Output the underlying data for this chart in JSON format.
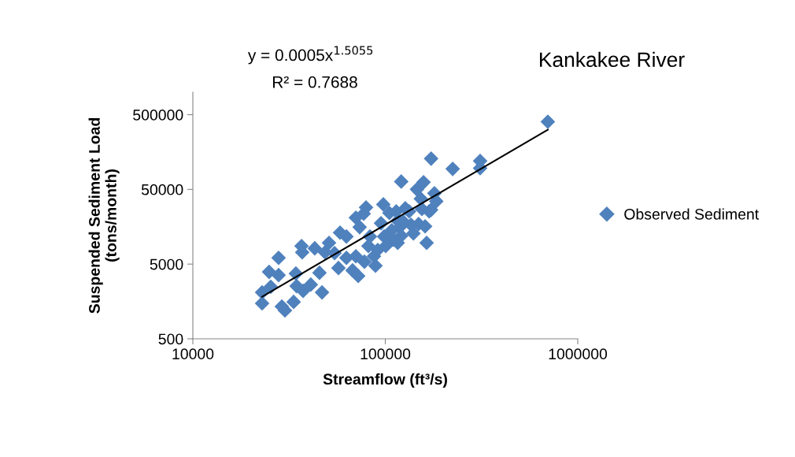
{
  "chart_data": {
    "type": "scatter",
    "title": "Kankakee River",
    "xlabel": "Streamflow (ft³/s)",
    "ylabel": "Suspended Sediment Load\n(tons/month)",
    "annotations": [
      "y = 0.0005x$^{1.5055}$",
      "R² = 0.7688"
    ],
    "log": "xy",
    "xlim": [
      10000,
      1000000
    ],
    "xticks": [
      10000,
      100000,
      1000000
    ],
    "ylim": [
      500,
      1000000
    ],
    "yticks": [
      500,
      5000,
      50000,
      500000
    ],
    "grid": false,
    "legend": "right",
    "marker": "diamond",
    "series": [
      {
        "name": "Observed Sediment",
        "color": "#4f81bd",
        "x": [
          22900,
          22900,
          25400,
          24900,
          27900,
          27900,
          29000,
          30100,
          33400,
          34300,
          34600,
          36700,
          37000,
          37400,
          41000,
          43000,
          45500,
          46900,
          48600,
          51000,
          54500,
          57100,
          58200,
          62800,
          62800,
          67600,
          70300,
          70300,
          73600,
          77200,
          77900,
          79400,
          81700,
          88900,
          91400,
          95000,
          97700,
          98600,
          100500,
          105000,
          108000,
          110000,
          114000,
          116000,
          119000,
          121000,
          124000,
          127000,
          133000,
          136000,
          140000,
          149000,
          153000,
          155000,
          158000,
          161000,
          164000,
          169000,
          173000,
          146000,
          173000,
          180000,
          184000,
          121000,
          224000,
          311000,
          311000,
          699000,
          87300,
          83200,
          72300,
          116000
        ],
        "values": [
          1490,
          2090,
          2480,
          3930,
          6070,
          3560,
          1350,
          1200,
          1560,
          3740,
          2540,
          8730,
          7190,
          2190,
          2660,
          8130,
          3830,
          2090,
          7190,
          9620,
          7010,
          4430,
          13200,
          6070,
          11700,
          4120,
          6370,
          20900,
          15600,
          23600,
          5380,
          28600,
          8730,
          4760,
          7730,
          17600,
          31500,
          11700,
          8730,
          24200,
          14200,
          10600,
          25400,
          9620,
          15600,
          12000,
          18500,
          27900,
          25400,
          16800,
          12900,
          17200,
          37400,
          27300,
          62200,
          16000,
          9620,
          25400,
          26600,
          50000,
          129000,
          44300,
          34700,
          63700,
          94000,
          120000,
          96200,
          402000,
          6370,
          11700,
          3470,
          19000
        ]
      },
      {
        "color": "#000000",
        "type": "line",
        "line_style": "solid",
        "marker": "none",
        "x": [
          22900,
          699000
        ],
        "values": [
          1830,
          315000
        ]
      }
    ]
  }
}
